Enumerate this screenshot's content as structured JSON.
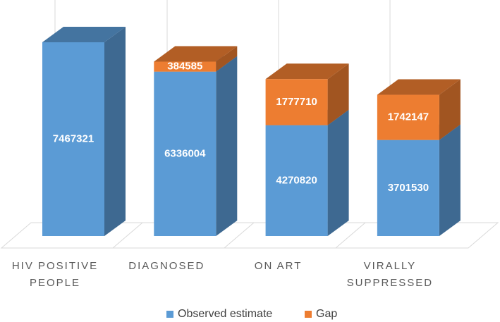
{
  "chart_data": {
    "type": "bar3d_stacked",
    "categories": [
      "HIV POSITIVE PEOPLE",
      "DIAGNOSED",
      "ON ART",
      "VIRALLY SUPPRESSED"
    ],
    "series": [
      {
        "name": "Observed estimate",
        "color": "#5b9bd5",
        "values": [
          7467321,
          6336004,
          4270820,
          3701530
        ]
      },
      {
        "name": "Gap",
        "color": "#ed7d31",
        "values": [
          null,
          384585,
          1777710,
          1742147
        ]
      }
    ],
    "legend": "bottom"
  }
}
